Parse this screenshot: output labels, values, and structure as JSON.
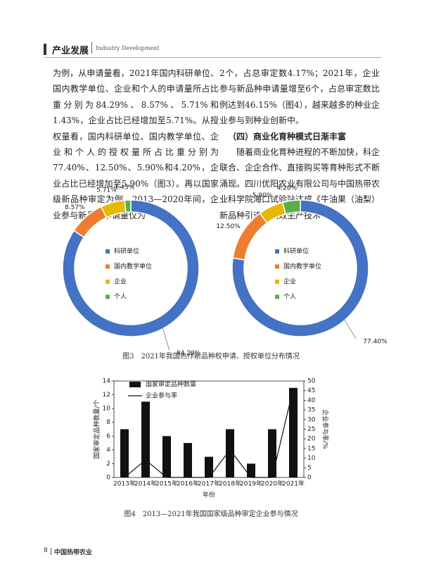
{
  "header": {
    "title": "产业发展",
    "subtitle": "Industry Development"
  },
  "left_column": {
    "paragraph": "为例，从申请量看，2021年国内科研单位、国内教学单位、企业和个人的申请量所占比重分别为84.29%、8.57%、5.71%和1.43%，企业占比已经增加至5.71%。从授权量看，国内科研单位、国内教学单位、企业和个人的授权量所占比重分别为77.40%、12.50%、5.90%和4.20%，企业占比已经增加至5.90%（图3）。再以国家级新品种审定为例，2013—2020年间，企业参与新品种申请量仅为"
  },
  "right_column": {
    "paragraph_1": "2个，占总审定数4.17%；2021年，企业参与新品种申请量增至6个，占总审定数比例达到46.15%（图4），越来越多的种业企业参与到种业创新中。",
    "heading": "（四）商业化育种模式日渐丰富",
    "paragraph_2": "随着商业化育种进程的不断加快，科企联合、企企合作、直接购买等育种形式不断涌现。四川优阳农业有限公司与中国热带农业科学院海口试验站达成《牛油果（油梨）新品种引进及高效生产技术"
  },
  "chart_data": [
    {
      "type": "pie",
      "donut": true,
      "categories": [
        "科研单位",
        "国内教学单位",
        "企业",
        "个人"
      ],
      "values": [
        84.29,
        8.57,
        5.71,
        1.43
      ],
      "value_labels": [
        "84.29%",
        "8.57%",
        "5.71%",
        "1.43%"
      ],
      "colors": [
        "#4472c4",
        "#ed7d31",
        "#e6b800",
        "#5cad46"
      ]
    },
    {
      "type": "pie",
      "donut": true,
      "categories": [
        "科研单位",
        "国内教学单位",
        "企业",
        "个人"
      ],
      "values": [
        77.4,
        12.5,
        5.9,
        4.2
      ],
      "value_labels": [
        "77.40%",
        "12.50%",
        "5.90%",
        "4.20%"
      ],
      "colors": [
        "#4472c4",
        "#ed7d31",
        "#e6b800",
        "#5cad46"
      ]
    },
    {
      "type": "bar",
      "xlabel": "年份",
      "ylabel": "国家审定品种数量/个",
      "y2label": "企业参与率/%",
      "categories": [
        "2013年",
        "2014年",
        "2015年",
        "2016年",
        "2017年",
        "2018年",
        "2019年",
        "2020年",
        "2021年"
      ],
      "series": [
        {
          "name": "国家审定品种数量",
          "color": "#111111",
          "type": "bar",
          "values": [
            7,
            11,
            6,
            5,
            3,
            7,
            2,
            7,
            13
          ]
        },
        {
          "name": "企业参与率",
          "color": "#111111",
          "type": "line",
          "axis": "y2",
          "values": [
            0,
            9.09,
            0,
            0,
            0,
            14.29,
            0,
            0,
            46.15
          ]
        }
      ],
      "ylim": [
        0,
        14
      ],
      "yticks": [
        0,
        2,
        4,
        6,
        8,
        10,
        12,
        14
      ],
      "y2lim": [
        0,
        50
      ],
      "y2ticks": [
        0,
        5,
        10,
        15,
        20,
        25,
        30,
        35,
        40,
        45,
        50
      ]
    }
  ],
  "figure_captions": [
    "图3　2021年我国热作新品种权申请、授权单位分布情况",
    "图4　2013—2021年我国国家级品种审定企业参与情况"
  ],
  "footer": {
    "page": "8",
    "journal": "中国热带农业"
  }
}
